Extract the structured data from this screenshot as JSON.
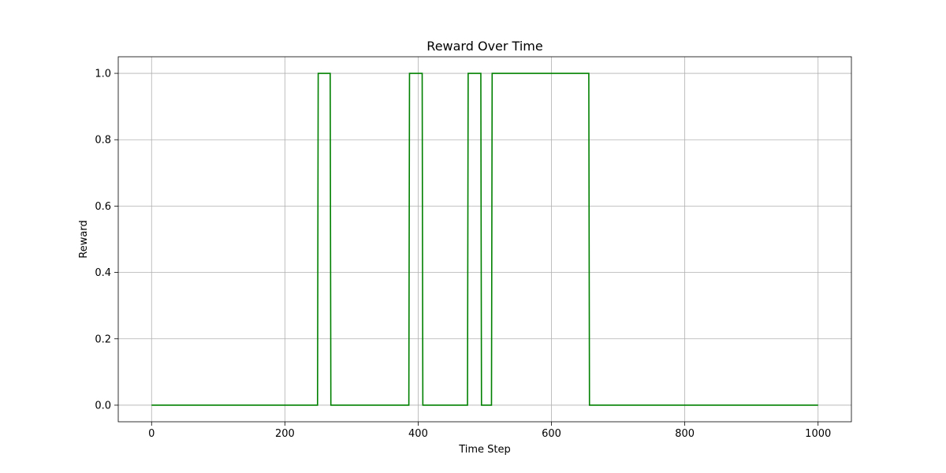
{
  "chart_data": {
    "type": "line",
    "title": "Reward Over Time",
    "xlabel": "Time Step",
    "ylabel": "Reward",
    "xlim": [
      -50,
      1050
    ],
    "ylim": [
      -0.05,
      1.05
    ],
    "xticks": [
      0,
      200,
      400,
      600,
      800,
      1000
    ],
    "xtick_labels": [
      "0",
      "200",
      "400",
      "600",
      "800",
      "1000"
    ],
    "yticks": [
      0.0,
      0.2,
      0.4,
      0.6,
      0.8,
      1.0
    ],
    "ytick_labels": [
      "0.0",
      "0.2",
      "0.4",
      "0.6",
      "0.8",
      "1.0"
    ],
    "grid": true,
    "series": [
      {
        "color": "#008000",
        "x": [
          0,
          249,
          250,
          268,
          269,
          386,
          387,
          406,
          407,
          474,
          475,
          494,
          495,
          510,
          511,
          656,
          657,
          1000
        ],
        "y": [
          0,
          0,
          1,
          1,
          0,
          0,
          1,
          1,
          0,
          0,
          1,
          1,
          0,
          0,
          1,
          1,
          0,
          0
        ]
      }
    ]
  }
}
